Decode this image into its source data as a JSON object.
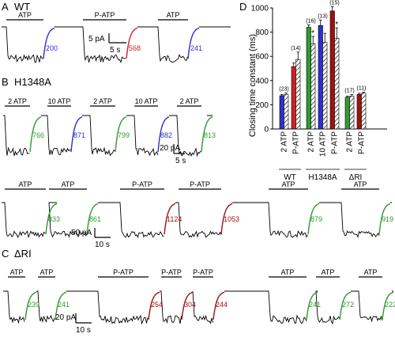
{
  "panels": {
    "A": {
      "letter": "A",
      "title": "WT"
    },
    "B": {
      "letter": "B",
      "title": "H1348A"
    },
    "C": {
      "letter": "C",
      "title": "ΔRI"
    },
    "D": {
      "letter": "D"
    }
  },
  "colors": {
    "blue": "#2f2fd0",
    "red": "#d42020",
    "green": "#2f9a2f",
    "darkred": "#a01010",
    "trace": "#000000"
  },
  "traces": {
    "A": {
      "segments": [
        {
          "label": "ATP",
          "tau": "200",
          "color": "blue"
        },
        {
          "label": "P-ATP",
          "tau": "568",
          "color": "red"
        },
        {
          "label": "ATP",
          "tau": "241",
          "color": "blue"
        }
      ],
      "scale": {
        "current": "5 pA",
        "time": "5 s"
      }
    },
    "B1": {
      "segments": [
        {
          "label": "2 ATP",
          "tau": "766",
          "color": "green"
        },
        {
          "label": "10 ATP",
          "tau": "871",
          "color": "blue"
        },
        {
          "label": "2 ATP",
          "tau": "799",
          "color": "green"
        },
        {
          "label": "10 ATP",
          "tau": "882",
          "color": "blue"
        },
        {
          "label": "2 ATP",
          "tau": "813",
          "color": "green"
        }
      ],
      "scale": {
        "current": "20 pA",
        "time": "5 s"
      }
    },
    "B2": {
      "segments": [
        {
          "label": "ATP",
          "tau": "833",
          "color": "green"
        },
        {
          "label": "ATP",
          "tau": "861",
          "color": "green"
        },
        {
          "label": "P-ATP",
          "tau": "1124",
          "color": "darkred"
        },
        {
          "label": "P-ATP",
          "tau": "1053",
          "color": "darkred"
        },
        {
          "label": "ATP",
          "tau": "879",
          "color": "green"
        },
        {
          "label": "ATP",
          "tau": "919",
          "color": "green"
        }
      ],
      "scale": {
        "current": "50 pA",
        "time": "10 s"
      }
    },
    "C": {
      "segments": [
        {
          "label": "ATP",
          "tau": "239",
          "color": "green"
        },
        {
          "label": "ATP",
          "tau": "241",
          "color": "green"
        },
        {
          "label": "P-ATP",
          "tau": "254",
          "color": "darkred"
        },
        {
          "label": "P-ATP",
          "tau": "304",
          "color": "darkred"
        },
        {
          "label": "P-ATP",
          "tau": "244",
          "color": "darkred"
        },
        {
          "label": "ATP",
          "tau": "241",
          "color": "green"
        },
        {
          "label": "ATP",
          "tau": "272",
          "color": "green"
        },
        {
          "label": "ATP",
          "tau": "222",
          "color": "green"
        }
      ],
      "scale": {
        "current": "20 pA",
        "time": "10 s"
      }
    }
  },
  "chart_data": {
    "type": "bar",
    "title": "",
    "ylabel": "Closing time constant (ms)",
    "ylim": [
      0,
      1000
    ],
    "yticks": [
      0,
      200,
      400,
      600,
      800,
      1000
    ],
    "grid": false,
    "groups": [
      {
        "name": "WT",
        "bars": [
          {
            "category": "2 ATP",
            "solid": 275,
            "hatched": 285,
            "solid_err": 10,
            "hatched_err": 12,
            "n": "(23)",
            "color": "blue",
            "star": false
          },
          {
            "category": "P-ATP",
            "solid": 515,
            "hatched": 575,
            "solid_err": 30,
            "hatched_err": 60,
            "n": "(14)",
            "color": "red",
            "star": false
          }
        ]
      },
      {
        "name": "H1348A",
        "bars": [
          {
            "category": "2 ATP",
            "solid": 840,
            "hatched": 705,
            "solid_err": 20,
            "hatched_err": 60,
            "n": "(16)",
            "color": "green",
            "star": true
          },
          {
            "category": "10 ATP",
            "solid": 855,
            "hatched": 715,
            "solid_err": 45,
            "hatched_err": 75,
            "n": "(13)",
            "color": "blue",
            "star": false
          },
          {
            "category": "P-ATP",
            "solid": 975,
            "hatched": 750,
            "solid_err": 35,
            "hatched_err": 85,
            "n": "(15)",
            "color": "darkred",
            "star": true
          }
        ]
      },
      {
        "name": "ΔRI",
        "bars": [
          {
            "category": "2 ATP",
            "solid": 262,
            "hatched": 272,
            "solid_err": 10,
            "hatched_err": 12,
            "n": "(17)",
            "color": "green",
            "star": false
          },
          {
            "category": "P-ATP",
            "solid": 285,
            "hatched": 295,
            "solid_err": 10,
            "hatched_err": 10,
            "n": "(11)",
            "color": "darkred",
            "star": false
          }
        ]
      }
    ],
    "star_label": "*"
  }
}
